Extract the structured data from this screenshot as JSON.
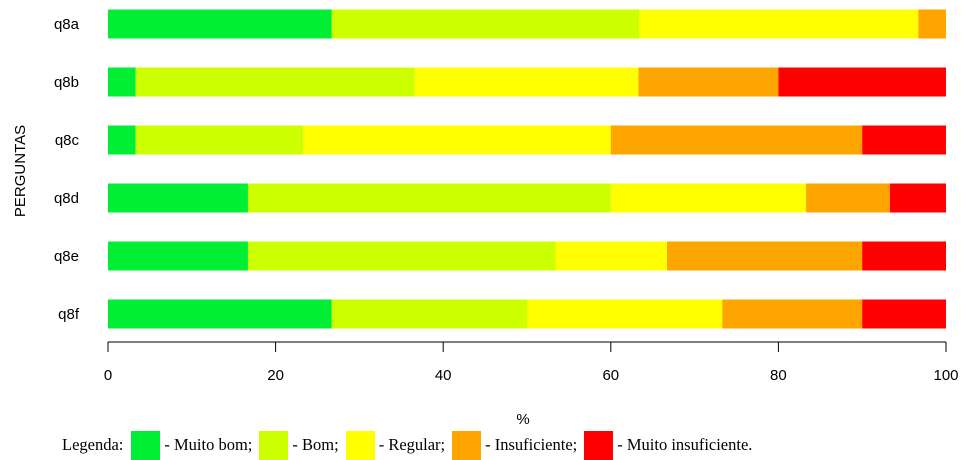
{
  "chart_data": {
    "type": "bar",
    "orientation": "horizontal",
    "stacked": true,
    "categories": [
      "q8a",
      "q8b",
      "q8c",
      "q8d",
      "q8e",
      "q8f"
    ],
    "series": [
      {
        "name": "Muito bom",
        "color": "#00ee33",
        "values": [
          26.7,
          3.3,
          3.3,
          16.7,
          16.7,
          26.7
        ]
      },
      {
        "name": "Bom",
        "color": "#ccff00",
        "values": [
          36.7,
          33.3,
          20.0,
          43.3,
          36.7,
          23.3
        ]
      },
      {
        "name": "Regular",
        "color": "#ffff00",
        "values": [
          33.3,
          26.7,
          36.7,
          23.3,
          13.3,
          23.3
        ]
      },
      {
        "name": "Insuficiente",
        "color": "#ffa500",
        "values": [
          3.3,
          16.7,
          30.0,
          10.0,
          23.3,
          16.7
        ]
      },
      {
        "name": "Muito insuficiente",
        "color": "#ff0000",
        "values": [
          0.0,
          20.0,
          10.0,
          6.7,
          10.0,
          10.0
        ]
      }
    ],
    "xlabel": "%",
    "ylabel": "PERGUNTAS",
    "xlim": [
      0,
      100
    ],
    "xticks": [
      "0",
      "20",
      "40",
      "60",
      "80",
      "100"
    ],
    "grid": false,
    "legend_position": "bottom"
  },
  "legend": {
    "title": "Legenda:",
    "items": [
      {
        "label": "- Muito bom;",
        "color": "#00ee33"
      },
      {
        "label": "- Bom;",
        "color": "#ccff00"
      },
      {
        "label": "- Regular;",
        "color": "#ffff00"
      },
      {
        "label": "- Insuficiente;",
        "color": "#ffa500"
      },
      {
        "label": "- Muito insuficiente.",
        "color": "#ff0000"
      }
    ]
  }
}
